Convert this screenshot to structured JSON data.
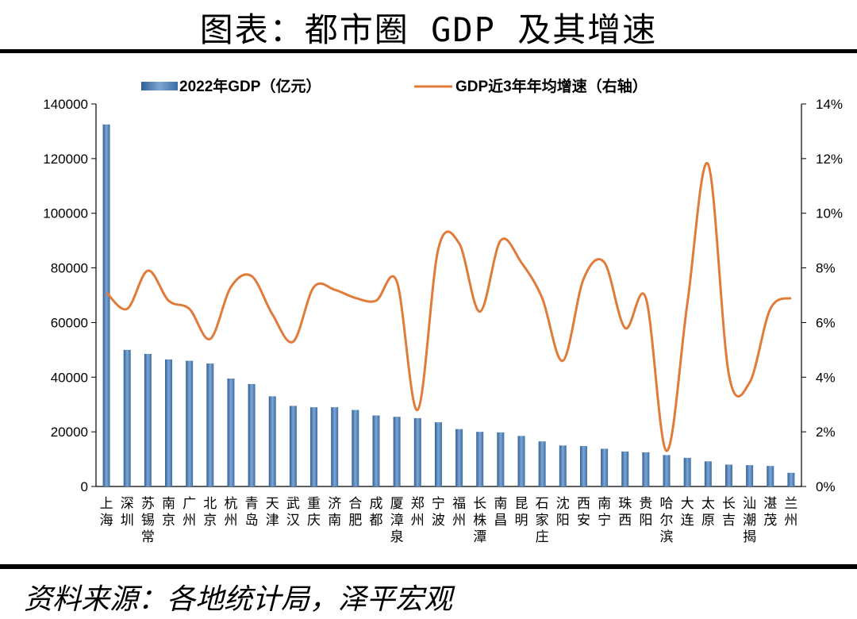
{
  "chart_data": {
    "type": "bar+line",
    "title": "图表：都市圈 GDP 及其增速",
    "source": "资料来源：各地统计局，泽平宏观",
    "categories": [
      "上海",
      "深圳",
      "苏锡常",
      "南京",
      "广州",
      "北京",
      "杭州",
      "青岛",
      "天津",
      "武汉",
      "重庆",
      "济南",
      "合肥",
      "成都",
      "厦漳泉",
      "郑州",
      "宁波",
      "福州",
      "长株潭",
      "南昌",
      "昆明",
      "石家庄",
      "沈阳",
      "西安",
      "南宁",
      "珠西",
      "贵阳",
      "哈尔滨",
      "大连",
      "太原",
      "长吉",
      "汕潮揭",
      "湛茂",
      "兰州"
    ],
    "series": [
      {
        "name": "2022年GDP（亿元）",
        "type": "bar",
        "axis": "left",
        "color": "#4f81bd",
        "values": [
          132500,
          50000,
          48500,
          46500,
          46000,
          45000,
          39500,
          37500,
          33000,
          29500,
          29000,
          29000,
          28000,
          26000,
          25500,
          25000,
          23500,
          21000,
          20000,
          19800,
          18500,
          16500,
          15000,
          14800,
          13800,
          12800,
          12500,
          11500,
          10500,
          9200,
          8000,
          7800,
          7500,
          5000
        ]
      },
      {
        "name": "GDP近3年年均增速（右轴）",
        "type": "line",
        "axis": "right",
        "color": "#e07b39",
        "values": [
          7.1,
          6.5,
          7.9,
          6.8,
          6.5,
          5.4,
          7.3,
          7.7,
          6.3,
          5.3,
          7.3,
          7.2,
          6.9,
          6.8,
          7.5,
          2.8,
          8.7,
          8.9,
          6.4,
          9.0,
          8.2,
          6.9,
          4.6,
          7.6,
          8.2,
          5.8,
          6.9,
          1.3,
          6.7,
          11.8,
          4.1,
          3.8,
          6.5,
          6.9
        ]
      }
    ],
    "y_left": {
      "min": 0,
      "max": 140000,
      "ticks": [
        "0",
        "20000",
        "40000",
        "60000",
        "80000",
        "100000",
        "120000",
        "140000"
      ]
    },
    "y_right": {
      "min": 0,
      "max": 14,
      "ticks": [
        "0%",
        "2%",
        "4%",
        "6%",
        "8%",
        "10%",
        "12%",
        "14%"
      ]
    },
    "legend_position": "top"
  }
}
